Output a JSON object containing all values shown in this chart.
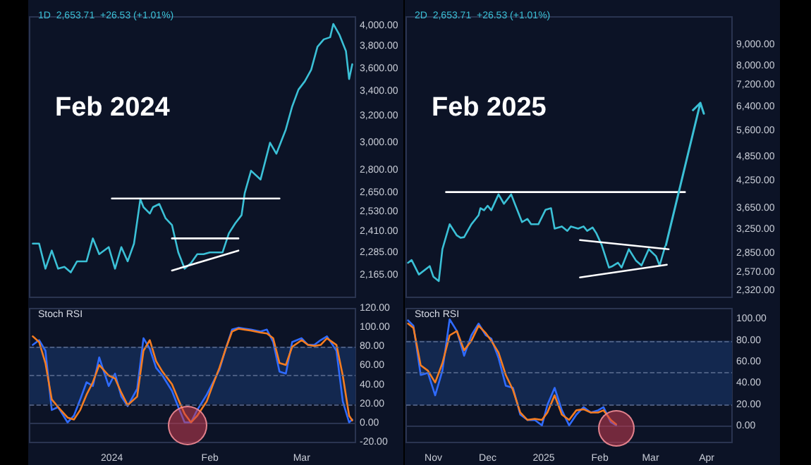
{
  "chart_data": [
    {
      "type": "line",
      "title": "Feb 2024",
      "subtitle": "1D  2,653.71  +26.53 (+1.01%)",
      "marker": "none",
      "log": true,
      "tick_labels": "y",
      "x": [
        "2023-12-07",
        "2023-12-09",
        "2023-12-11",
        "2023-12-13",
        "2023-12-15",
        "2023-12-17",
        "2023-12-19",
        "2023-12-21",
        "2023-12-24",
        "2023-12-26",
        "2023-12-28",
        "2023-12-31",
        "2024-01-02",
        "2024-01-04",
        "2024-01-06",
        "2024-01-08",
        "2024-01-10",
        "2024-01-11",
        "2024-01-13",
        "2024-01-14",
        "2024-01-16",
        "2024-01-18",
        "2024-01-20",
        "2024-01-22",
        "2024-01-24",
        "2024-01-26",
        "2024-01-28",
        "2024-01-30",
        "2024-02-01",
        "2024-02-04",
        "2024-02-05",
        "2024-02-07",
        "2024-02-09",
        "2024-02-11",
        "2024-02-12",
        "2024-02-14",
        "2024-02-17",
        "2024-02-20",
        "2024-02-22",
        "2024-02-25",
        "2024-02-27",
        "2024-02-29",
        "2024-03-02",
        "2024-03-04",
        "2024-03-06",
        "2024-03-08",
        "2024-03-10",
        "2024-03-11",
        "2024-03-13",
        "2024-03-15",
        "2024-03-16",
        "2024-03-17"
      ],
      "series": [
        {
          "color": "#3bc0d6",
          "values": [
            2340,
            2340,
            2200,
            2300,
            2200,
            2210,
            2180,
            2240,
            2240,
            2370,
            2280,
            2320,
            2200,
            2320,
            2240,
            2340,
            2610,
            2560,
            2520,
            2560,
            2580,
            2490,
            2450,
            2290,
            2200,
            2230,
            2280,
            2280,
            2290,
            2290,
            2290,
            2400,
            2460,
            2510,
            2650,
            2800,
            2740,
            3000,
            2920,
            3100,
            3280,
            3420,
            3490,
            3590,
            3800,
            3870,
            3890,
            4020,
            3910,
            3760,
            3510,
            3640
          ]
        },
        {
          "type": "line",
          "color": "#ffffff",
          "x": [
            "2024-01-01",
            "2024-02-23"
          ],
          "values": [
            2615,
            2615
          ]
        },
        {
          "type": "line",
          "color": "#ffffff",
          "x": [
            "2024-01-20",
            "2024-02-10"
          ],
          "values": [
            2370,
            2370
          ]
        },
        {
          "type": "line",
          "color": "#ffffff",
          "x": [
            "2024-01-20",
            "2024-02-10"
          ],
          "values": [
            2190,
            2300
          ]
        }
      ],
      "xlim": [
        "2023-12-06",
        "2024-03-18"
      ],
      "ylim": [
        2050,
        4090
      ],
      "yticks": [
        {
          "value": 2165,
          "label": "2,165.00"
        },
        {
          "value": 2285,
          "label": "2,285.00"
        },
        {
          "value": 2410,
          "label": "2,410.00"
        },
        {
          "value": 2530,
          "label": "2,530.00"
        },
        {
          "value": 2650,
          "label": "2,650.00"
        },
        {
          "value": 2800,
          "label": "2,800.00"
        },
        {
          "value": 3000,
          "label": "3,000.00"
        },
        {
          "value": 3200,
          "label": "3,200.00"
        },
        {
          "value": 3400,
          "label": "3,400.00"
        },
        {
          "value": 3600,
          "label": "3,600.00"
        },
        {
          "value": 3800,
          "label": "3,800.00"
        },
        {
          "value": 4000,
          "label": "4,000.00"
        }
      ]
    },
    {
      "type": "line",
      "title": "Stoch RSI",
      "marker": "none",
      "x": [
        "2023-12-07",
        "2023-12-09",
        "2023-12-11",
        "2023-12-13",
        "2023-12-15",
        "2023-12-18",
        "2023-12-20",
        "2023-12-22",
        "2023-12-24",
        "2023-12-26",
        "2023-12-28",
        "2023-12-31",
        "2024-01-02",
        "2024-01-04",
        "2024-01-06",
        "2024-01-09",
        "2024-01-11",
        "2024-01-13",
        "2024-01-15",
        "2024-01-17",
        "2024-01-20",
        "2024-01-22",
        "2024-01-24",
        "2024-01-26",
        "2024-01-28",
        "2024-01-31",
        "2024-02-02",
        "2024-02-04",
        "2024-02-06",
        "2024-02-08",
        "2024-02-10",
        "2024-02-12",
        "2024-02-14",
        "2024-02-17",
        "2024-02-19",
        "2024-02-21",
        "2024-02-23",
        "2024-02-25",
        "2024-02-27",
        "2024-03-01",
        "2024-03-03",
        "2024-03-05",
        "2024-03-07",
        "2024-03-09",
        "2024-03-12",
        "2024-03-14",
        "2024-03-16",
        "2024-03-17"
      ],
      "series": [
        {
          "color": "#2f6bff",
          "values": [
            82,
            87,
            76,
            14,
            17,
            1,
            8,
            25,
            43,
            39,
            69,
            39,
            52,
            28,
            18,
            36,
            89,
            78,
            58,
            50,
            34,
            17,
            1,
            1,
            14,
            30,
            43,
            56,
            78,
            98,
            100,
            99,
            98,
            96,
            98,
            85,
            54,
            52,
            85,
            89,
            82,
            82,
            87,
            91,
            76,
            23,
            1,
            4
          ]
        },
        {
          "color": "#f57c20",
          "values": [
            91,
            85,
            63,
            25,
            17,
            6,
            4,
            14,
            30,
            43,
            61,
            50,
            47,
            32,
            19,
            28,
            76,
            87,
            65,
            54,
            41,
            25,
            10,
            1,
            8,
            23,
            41,
            58,
            78,
            96,
            99,
            98,
            97,
            95,
            94,
            89,
            63,
            61,
            80,
            87,
            82,
            81,
            82,
            89,
            82,
            50,
            8,
            3
          ]
        }
      ],
      "xlim": [
        "2023-12-06",
        "2024-03-18"
      ],
      "ylim": [
        -20,
        120
      ],
      "xticks": [
        {
          "value": "2024-01-01",
          "label": "2024"
        },
        {
          "value": "2024-02-01",
          "label": "Feb"
        },
        {
          "value": "2024-03-01",
          "label": "Mar"
        }
      ],
      "yticks": [
        {
          "value": -20,
          "label": "-20.00"
        },
        {
          "value": 0,
          "label": "0.00"
        },
        {
          "value": 20,
          "label": "20.00"
        },
        {
          "value": 40,
          "label": "40.00"
        },
        {
          "value": 60,
          "label": "60.00"
        },
        {
          "value": 80,
          "label": "80.00"
        },
        {
          "value": 100,
          "label": "100.00"
        },
        {
          "value": 120,
          "label": "120.00"
        }
      ],
      "ref_lines": [
        {
          "axis": "y",
          "value": 80,
          "color": "#5d6f94",
          "line_style": "dashed"
        },
        {
          "axis": "y",
          "value": 50,
          "color": "#5d6f94",
          "line_style": "dashed"
        },
        {
          "axis": "y",
          "value": 20,
          "color": "#5d6f94",
          "line_style": "dashed"
        }
      ],
      "bands": [
        {
          "axis": "y",
          "from": 20,
          "to": 80,
          "color": "#13284f"
        }
      ]
    },
    {
      "type": "line",
      "title": "Feb 2025",
      "subtitle": "2D  2,653.71  +26.53 (+1.01%)",
      "marker": "none",
      "log": true,
      "tick_labels": "y",
      "x": [
        "2024-10-18",
        "2024-10-20",
        "2024-10-24",
        "2024-10-30",
        "2024-11-01",
        "2024-11-04",
        "2024-11-06",
        "2024-11-10",
        "2024-11-14",
        "2024-11-16",
        "2024-11-18",
        "2024-11-22",
        "2024-11-26",
        "2024-11-27",
        "2024-11-29",
        "2024-12-01",
        "2024-12-03",
        "2024-12-07",
        "2024-12-10",
        "2024-12-14",
        "2024-12-16",
        "2024-12-20",
        "2024-12-23",
        "2024-12-25",
        "2024-12-29",
        "2025-01-02",
        "2025-01-05",
        "2025-01-07",
        "2025-01-11",
        "2025-01-14",
        "2025-01-16",
        "2025-01-20",
        "2025-01-23",
        "2025-01-25",
        "2025-01-28",
        "2025-01-30",
        "2025-02-02",
        "2025-02-06",
        "2025-02-08",
        "2025-02-11",
        "2025-02-13",
        "2025-02-17",
        "2025-02-21",
        "2025-02-24",
        "2025-02-28",
        "2025-03-04",
        "2025-03-06",
        "2025-03-09"
      ],
      "series": [
        {
          "color": "#3bc0d6",
          "values": [
            2710,
            2750,
            2540,
            2660,
            2510,
            2450,
            2920,
            3350,
            3150,
            3110,
            3120,
            3350,
            3520,
            3660,
            3620,
            3710,
            3620,
            3950,
            3750,
            3950,
            3750,
            3390,
            3450,
            3350,
            3350,
            3630,
            3660,
            3270,
            3310,
            3230,
            3310,
            3270,
            3310,
            3230,
            3290,
            3190,
            2990,
            2640,
            2660,
            2710,
            2640,
            2920,
            2740,
            2670,
            2920,
            2810,
            2670,
            2960
          ]
        },
        {
          "type": "line",
          "color": "#ffffff",
          "x": [
            "2024-11-08",
            "2025-03-20"
          ],
          "values": [
            4000,
            4000
          ]
        },
        {
          "type": "line",
          "color": "#ffffff",
          "x": [
            "2025-01-21",
            "2025-03-11"
          ],
          "values": [
            3070,
            2920
          ]
        },
        {
          "type": "line",
          "color": "#ffffff",
          "x": [
            "2025-01-21",
            "2025-03-10"
          ],
          "values": [
            2500,
            2680
          ]
        }
      ],
      "xlim": [
        "2024-10-17",
        "2025-04-15"
      ],
      "ylim": [
        2240,
        10500
      ],
      "yticks": [
        {
          "value": 2320,
          "label": "2,320.00"
        },
        {
          "value": 2570,
          "label": "2,570.00"
        },
        {
          "value": 2850,
          "label": "2,850.00"
        },
        {
          "value": 3250,
          "label": "3,250.00"
        },
        {
          "value": 3650,
          "label": "3,650.00"
        },
        {
          "value": 4250,
          "label": "4,250.00"
        },
        {
          "value": 4850,
          "label": "4,850.00"
        },
        {
          "value": 5600,
          "label": "5,600.00"
        },
        {
          "value": 6400,
          "label": "6,400.00"
        },
        {
          "value": 7200,
          "label": "7,200.00"
        },
        {
          "value": 8000,
          "label": "8,000.00"
        },
        {
          "value": 9000,
          "label": "9,000.00"
        }
      ]
    },
    {
      "type": "line",
      "title": "Stoch RSI",
      "marker": "none",
      "x": [
        "2024-10-18",
        "2024-10-21",
        "2024-10-25",
        "2024-10-29",
        "2024-11-02",
        "2024-11-06",
        "2024-11-10",
        "2024-11-14",
        "2024-11-18",
        "2024-11-22",
        "2024-11-26",
        "2024-11-30",
        "2024-12-03",
        "2024-12-07",
        "2024-12-11",
        "2024-12-15",
        "2024-12-19",
        "2024-12-23",
        "2024-12-27",
        "2024-12-31",
        "2025-01-03",
        "2025-01-07",
        "2025-01-11",
        "2025-01-15",
        "2025-01-19",
        "2025-01-23",
        "2025-01-27",
        "2025-01-31",
        "2025-02-03",
        "2025-02-07",
        "2025-02-10"
      ],
      "series": [
        {
          "color": "#2f6bff",
          "values": [
            99,
            94,
            48,
            50,
            29,
            52,
            100,
            89,
            66,
            85,
            96,
            85,
            82,
            64,
            38,
            36,
            11,
            6,
            6,
            1,
            20,
            36,
            15,
            1,
            11,
            18,
            13,
            15,
            18,
            4,
            1
          ]
        },
        {
          "color": "#f57c20",
          "values": [
            96,
            92,
            57,
            52,
            41,
            59,
            85,
            89,
            71,
            80,
            94,
            87,
            80,
            69,
            48,
            34,
            13,
            6,
            7,
            6,
            13,
            29,
            11,
            6,
            15,
            16,
            13,
            13,
            15,
            6,
            2
          ]
        }
      ],
      "xlim": [
        "2024-10-17",
        "2025-04-15"
      ],
      "ylim": [
        -15,
        110
      ],
      "xticks": [
        {
          "value": "2024-11-01",
          "label": "Nov"
        },
        {
          "value": "2024-12-01",
          "label": "Dec"
        },
        {
          "value": "2025-01-01",
          "label": "2025"
        },
        {
          "value": "2025-02-01",
          "label": "Feb"
        },
        {
          "value": "2025-03-01",
          "label": "Mar"
        },
        {
          "value": "2025-04-01",
          "label": "Apr"
        }
      ],
      "yticks": [
        {
          "value": 0,
          "label": "0.00"
        },
        {
          "value": 20,
          "label": "20.00"
        },
        {
          "value": 40,
          "label": "40.00"
        },
        {
          "value": 60,
          "label": "60.00"
        },
        {
          "value": 80,
          "label": "80.00"
        },
        {
          "value": 100,
          "label": "100.00"
        }
      ],
      "ref_lines": [
        {
          "axis": "y",
          "value": 80,
          "color": "#5d6f94",
          "line_style": "dashed"
        },
        {
          "axis": "y",
          "value": 50,
          "color": "#5d6f94",
          "line_style": "dashed"
        },
        {
          "axis": "y",
          "value": 20,
          "color": "#5d6f94",
          "line_style": "dashed"
        }
      ],
      "bands": [
        {
          "axis": "y",
          "from": 20,
          "to": 80,
          "color": "#13284f"
        }
      ]
    }
  ]
}
